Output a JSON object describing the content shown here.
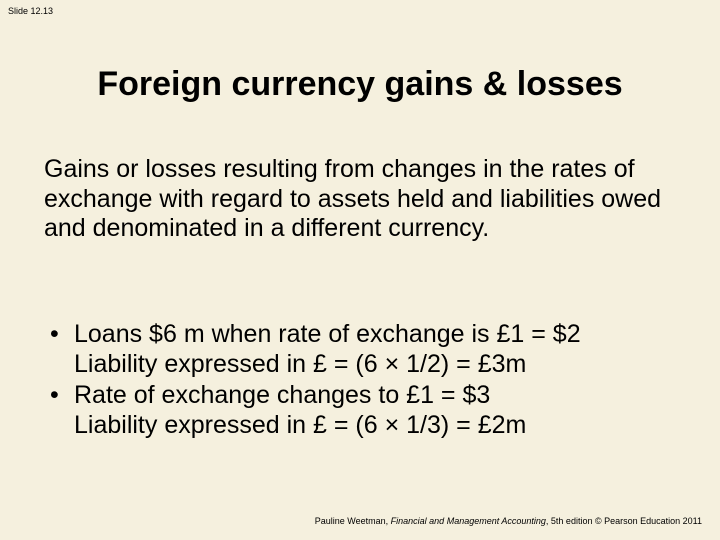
{
  "slide_number": "Slide 12.13",
  "title": "Foreign currency gains & losses",
  "paragraph": "Gains or losses resulting from changes in the rates of exchange with regard to assets held and liabilities owed and denominated in a different currency.",
  "bullets": [
    {
      "line1": "Loans $6 m when rate of exchange is £1 = $2",
      "line2": "Liability expressed in £ = (6 × 1/2) = £3m"
    },
    {
      "line1": "Rate of exchange changes to £1 = $3",
      "line2": "Liability expressed in £ = (6 × 1/3) = £2m"
    }
  ],
  "footer": {
    "author": "Pauline Weetman, ",
    "book": "Financial and Management Accounting",
    "rest": ", 5th edition © Pearson Education 2011"
  },
  "colors": {
    "background": "#f5f0de",
    "text": "#000000"
  }
}
